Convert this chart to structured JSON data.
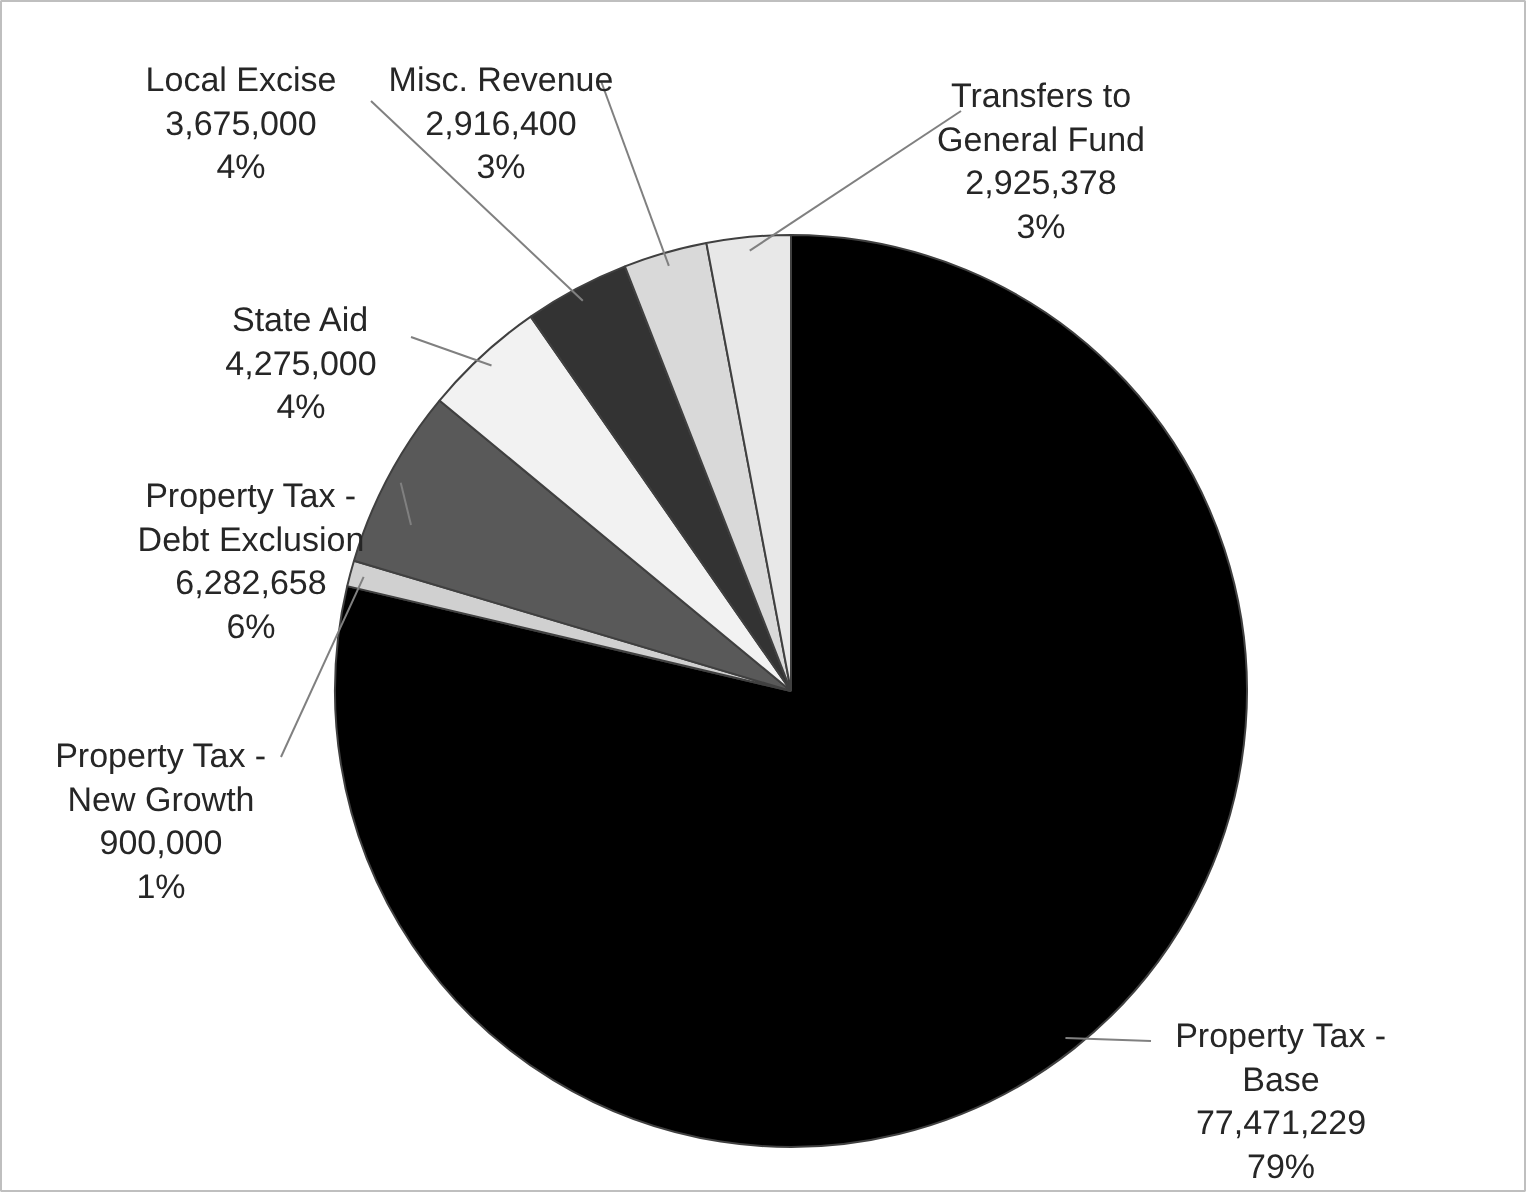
{
  "chart_data": {
    "type": "pie",
    "categories": [
      "Property Tax -\nBase",
      "Property Tax -\nNew Growth",
      "Property Tax -\nDebt Exclusion",
      "State Aid",
      "Local Excise",
      "Misc. Revenue",
      "Transfers to\nGeneral Fund"
    ],
    "values": [
      77471229,
      900000,
      6282658,
      4275000,
      3675000,
      2916400,
      2925378
    ],
    "colors": [
      "#000000",
      "#d0d0d0",
      "#595959",
      "#f2f2f2",
      "#333333",
      "#d9d9d9",
      "#e8e8e8"
    ],
    "value_labels": [
      "77,471,229\n79%",
      "900,000\n1%",
      "6,282,658\n6%",
      "4,275,000\n4%",
      "3,675,000\n4%",
      "2,916,400\n3%",
      "2,925,378\n3%"
    ]
  }
}
